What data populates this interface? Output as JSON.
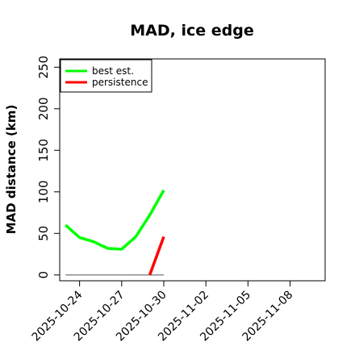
{
  "chart_data": {
    "type": "line",
    "title": "MAD, ice edge",
    "xlabel": "",
    "ylabel": "MAD distance (km)",
    "xlim": [
      "2025-10-22T14:00",
      "2025-11-10T12:00"
    ],
    "ylim": [
      -7,
      260
    ],
    "x_ticks": [
      "2025-10-24",
      "2025-10-27",
      "2025-10-30",
      "2025-11-02",
      "2025-11-05",
      "2025-11-08"
    ],
    "y_ticks": [
      0,
      50,
      100,
      150,
      200,
      250
    ],
    "grid": false,
    "legend_position": "top-left",
    "series": [
      {
        "name": "best est.",
        "color": "#00ff00",
        "x": [
          "2025-10-23",
          "2025-10-24",
          "2025-10-25",
          "2025-10-26",
          "2025-10-27",
          "2025-10-28",
          "2025-10-29",
          "2025-10-30"
        ],
        "y": [
          60,
          45,
          40,
          32,
          31,
          46,
          72,
          102
        ]
      },
      {
        "name": "persistence",
        "color": "#ff0000",
        "x": [
          "2025-10-29",
          "2025-10-30"
        ],
        "y": [
          0,
          46
        ]
      }
    ],
    "baseline": {
      "color": "#666666",
      "x": [
        "2025-10-23",
        "2025-10-30"
      ],
      "y": [
        0,
        0
      ]
    }
  }
}
